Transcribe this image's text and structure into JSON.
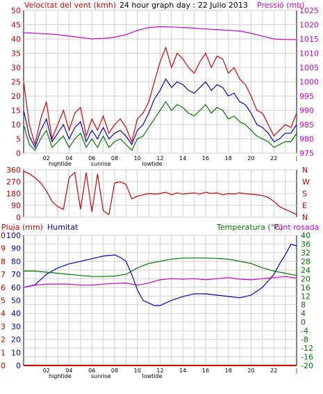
{
  "header": {
    "wind_speed_label": "Velocitat del vent (kmh)",
    "title": "24 hour graph day : 22 Julio 2013",
    "pressure_label": "Pressió (mb)"
  },
  "legend_bottom": {
    "rain_label": "Pluja (mm)",
    "humidity_label": "Humitat",
    "temperature_label": "Temperatura (°C)",
    "dewpoint_label": "Punt rosada"
  },
  "colors": {
    "wind_gust": "#dd0000",
    "wind_avg": "#0000cc",
    "wind_green": "#007700",
    "pressure": "#cc00cc",
    "direction": "#cc0000",
    "humidity": "#0000cc",
    "temperature": "#007700",
    "dewpoint": "#cc00cc",
    "rain": "#cc0000",
    "grid": "#cfcfcf"
  },
  "x_axis": {
    "ticks": [
      "02",
      "04",
      "06",
      "08",
      "10",
      "12",
      "14",
      "16",
      "18",
      "20",
      "22",
      "|"
    ],
    "annotations": [
      {
        "label": "hightide",
        "hour": 3.2
      },
      {
        "label": "sunrise",
        "hour": 6.8
      },
      {
        "label": "lowtide",
        "hour": 11.3
      }
    ]
  },
  "chart_data": [
    {
      "type": "line",
      "name": "wind_and_pressure",
      "x_range": [
        0,
        24
      ],
      "y_left": {
        "label": "Velocitat del vent (kmh)",
        "range": [
          0,
          50
        ],
        "ticks": [
          0,
          5,
          10,
          15,
          20,
          25,
          30,
          35,
          40,
          45,
          50
        ]
      },
      "y_right": {
        "label": "Pressió (mb)",
        "range": [
          975,
          1025
        ],
        "ticks": [
          975,
          980,
          985,
          990,
          995,
          1000,
          1005,
          1010,
          1015,
          1020,
          1025
        ]
      },
      "series": [
        {
          "key": "gust",
          "axis": "left",
          "x": [
            0,
            0.5,
            1,
            1.5,
            2,
            2.5,
            3,
            3.5,
            4,
            4.5,
            5,
            5.5,
            6,
            6.5,
            7,
            7.5,
            8,
            8.5,
            9,
            9.5,
            10,
            10.5,
            11,
            11.5,
            12,
            12.5,
            13,
            13.5,
            14,
            14.5,
            15,
            15.5,
            16,
            16.5,
            17,
            17.5,
            18,
            18.5,
            19,
            19.5,
            20,
            20.5,
            21,
            21.5,
            22,
            22.5,
            23,
            23.5,
            24
          ],
          "y": [
            25,
            10,
            3,
            12,
            18,
            5,
            10,
            15,
            8,
            14,
            16,
            6,
            12,
            8,
            13,
            7,
            10,
            12,
            9,
            4,
            12,
            14,
            18,
            25,
            32,
            37,
            30,
            35,
            33,
            30,
            28,
            32,
            35,
            30,
            34,
            33,
            28,
            30,
            26,
            24,
            20,
            15,
            14,
            10,
            6,
            8,
            10,
            9,
            14
          ]
        },
        {
          "key": "avg",
          "axis": "left",
          "x": [
            0,
            0.5,
            1,
            1.5,
            2,
            2.5,
            3,
            3.5,
            4,
            4.5,
            5,
            5.5,
            6,
            6.5,
            7,
            7.5,
            8,
            8.5,
            9,
            9.5,
            10,
            10.5,
            11,
            11.5,
            12,
            12.5,
            13,
            13.5,
            14,
            14.5,
            15,
            15.5,
            16,
            16.5,
            17,
            17.5,
            18,
            18.5,
            19,
            19.5,
            20,
            20.5,
            21,
            21.5,
            22,
            22.5,
            23,
            23.5,
            24
          ],
          "y": [
            15,
            6,
            2,
            8,
            12,
            4,
            7,
            10,
            5,
            9,
            11,
            4,
            8,
            5,
            9,
            5,
            7,
            8,
            6,
            3,
            8,
            10,
            14,
            19,
            22,
            26,
            23,
            25,
            24,
            22,
            21,
            23,
            25,
            22,
            24,
            23,
            20,
            21,
            18,
            17,
            14,
            10,
            9,
            7,
            4,
            5,
            7,
            7,
            10
          ]
        },
        {
          "key": "min_wind",
          "axis": "left",
          "x": [
            0,
            0.5,
            1,
            1.5,
            2,
            2.5,
            3,
            3.5,
            4,
            4.5,
            5,
            5.5,
            6,
            6.5,
            7,
            7.5,
            8,
            8.5,
            9,
            9.5,
            10,
            10.5,
            11,
            11.5,
            12,
            12.5,
            13,
            13.5,
            14,
            14.5,
            15,
            15.5,
            16,
            16.5,
            17,
            17.5,
            18,
            18.5,
            19,
            19.5,
            20,
            20.5,
            21,
            21.5,
            22,
            22.5,
            23,
            23.5,
            24
          ],
          "y": [
            10,
            3,
            1,
            5,
            8,
            2,
            4,
            6,
            2,
            5,
            7,
            2,
            5,
            2,
            6,
            2,
            4,
            5,
            3,
            1,
            5,
            6,
            9,
            12,
            15,
            18,
            15,
            17,
            16,
            14,
            13,
            15,
            17,
            14,
            16,
            15,
            12,
            13,
            11,
            10,
            8,
            6,
            5,
            4,
            2,
            3,
            4,
            4,
            7
          ]
        },
        {
          "key": "pressure",
          "axis": "right",
          "x": [
            0,
            1,
            2,
            3,
            4,
            5,
            6,
            7,
            8,
            9,
            10,
            11,
            12,
            13,
            14,
            15,
            16,
            17,
            18,
            19,
            20,
            21,
            22,
            23,
            24
          ],
          "y": [
            1017.2,
            1017,
            1016.8,
            1016.5,
            1016,
            1015.5,
            1015,
            1015.2,
            1015.6,
            1016.5,
            1018,
            1019,
            1019.3,
            1019.2,
            1019,
            1018.8,
            1018.5,
            1018.3,
            1018,
            1017.8,
            1017,
            1016,
            1015,
            1014.8,
            1014.8
          ]
        }
      ]
    },
    {
      "type": "line",
      "name": "wind_direction",
      "x_range": [
        0,
        24
      ],
      "y_left": {
        "ticks": [
          0,
          90,
          180,
          270,
          360
        ],
        "range": [
          0,
          360
        ]
      },
      "y_right": {
        "ticks": [
          "N",
          "W",
          "S",
          "E",
          "N"
        ]
      },
      "series": [
        {
          "key": "direction",
          "x": [
            0,
            0.5,
            1,
            1.5,
            2,
            2.5,
            3,
            3.5,
            4,
            4.5,
            5,
            5.5,
            6,
            6.5,
            7,
            7.5,
            8,
            8.5,
            9,
            9.5,
            10,
            10.5,
            11,
            11.5,
            12,
            12.5,
            13,
            13.5,
            14,
            14.5,
            15,
            15.5,
            16,
            16.5,
            17,
            17.5,
            18,
            18.5,
            19,
            19.5,
            20,
            20.5,
            21,
            21.5,
            22,
            22.5,
            23,
            23.5,
            24
          ],
          "y": [
            350,
            330,
            300,
            260,
            200,
            120,
            80,
            60,
            300,
            340,
            60,
            340,
            40,
            330,
            50,
            20,
            260,
            270,
            250,
            140,
            160,
            170,
            180,
            175,
            180,
            190,
            170,
            185,
            175,
            180,
            185,
            175,
            190,
            180,
            185,
            170,
            180,
            175,
            185,
            178,
            175,
            170,
            165,
            150,
            120,
            80,
            60,
            40,
            20
          ]
        }
      ]
    },
    {
      "type": "line",
      "name": "rain_humidity_temperature",
      "x_range": [
        0,
        24
      ],
      "y_left_rain": {
        "label": "Pluja (mm)",
        "range": [
          0,
          10
        ],
        "ticks": [
          0,
          1,
          2,
          3,
          4,
          5,
          6,
          7,
          8,
          9,
          10
        ]
      },
      "y_left_humidity": {
        "label": "Humitat",
        "range": [
          0,
          100
        ],
        "ticks": [
          0,
          10,
          20,
          30,
          40,
          50,
          60,
          70,
          80,
          90,
          100
        ]
      },
      "y_right": {
        "label": "Temperatura (°C)",
        "range": [
          -20,
          40
        ],
        "ticks": [
          -20,
          -16,
          -12,
          -8,
          -4,
          0,
          4,
          8,
          12,
          16,
          20,
          24,
          28,
          32,
          36,
          40
        ]
      },
      "series": [
        {
          "key": "humidity",
          "axis": "humidity",
          "x": [
            0,
            1,
            2,
            3,
            4,
            5,
            6,
            7,
            8,
            8.5,
            9,
            9.5,
            10,
            10.5,
            11,
            11.5,
            12,
            12.5,
            13,
            14,
            15,
            16,
            17,
            18,
            19,
            20,
            21,
            22,
            22.5,
            23,
            23.5,
            24
          ],
          "y": [
            60,
            62,
            70,
            75,
            78,
            80,
            82,
            84,
            85,
            83,
            80,
            70,
            58,
            50,
            48,
            46,
            46,
            48,
            50,
            53,
            55,
            55,
            54,
            53,
            52,
            54,
            60,
            70,
            78,
            85,
            93,
            92
          ]
        },
        {
          "key": "temperature",
          "axis": "temp",
          "x": [
            0,
            1,
            2,
            3,
            4,
            5,
            6,
            7,
            8,
            9,
            10,
            11,
            12,
            13,
            14,
            15,
            16,
            17,
            18,
            19,
            20,
            21,
            22,
            23,
            24
          ],
          "y": [
            23.5,
            23.5,
            23,
            22.5,
            22,
            21.5,
            21,
            21,
            21.2,
            22,
            25,
            27,
            28,
            29,
            29.5,
            29.5,
            29.5,
            29.3,
            29,
            28,
            27,
            25,
            23.5,
            22.5,
            21.5
          ]
        },
        {
          "key": "dewpoint",
          "axis": "temp",
          "x": [
            0,
            1,
            2,
            3,
            4,
            5,
            6,
            7,
            8,
            9,
            10,
            11,
            12,
            13,
            14,
            15,
            16,
            17,
            18,
            19,
            20,
            21,
            22,
            23,
            24
          ],
          "y": [
            16,
            17,
            17.5,
            17.5,
            17.5,
            17,
            17,
            17.5,
            17.8,
            18,
            17,
            18,
            19.5,
            20,
            19.8,
            20,
            19.5,
            20,
            20.5,
            19.8,
            19.5,
            20,
            20.5,
            21,
            20.3
          ]
        },
        {
          "key": "rain",
          "axis": "rain",
          "x": [
            0,
            24
          ],
          "y": [
            0,
            0
          ]
        }
      ]
    }
  ]
}
